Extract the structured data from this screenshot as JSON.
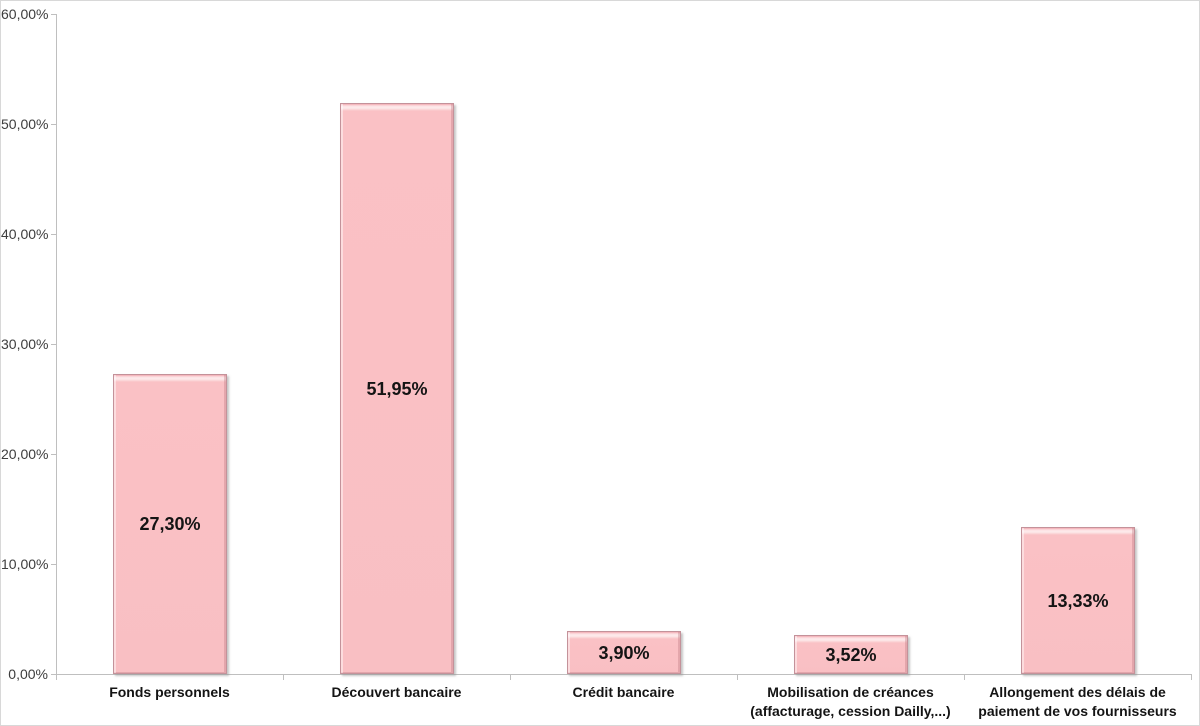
{
  "chart_data": {
    "type": "bar",
    "title": "",
    "xlabel": "",
    "ylabel": "",
    "grid": false,
    "legend": "none",
    "categories": [
      "Fonds personnels",
      "Découvert bancaire",
      "Crédit bancaire",
      "Mobilisation de créances\n(affacturage, cession Dailly,...)",
      "Allongement des délais de\npaiement de vos fournisseurs"
    ],
    "values": [
      27.3,
      51.95,
      3.9,
      3.52,
      13.33
    ],
    "data_labels": [
      "27,30%",
      "51,95%",
      "3,90%",
      "3,52%",
      "13,33%"
    ],
    "y_axis": {
      "min": 0,
      "max": 60,
      "ticks": [
        {
          "value": 0,
          "label": "0,00%"
        },
        {
          "value": 10,
          "label": "10,00%"
        },
        {
          "value": 20,
          "label": "20,00%"
        },
        {
          "value": 30,
          "label": "30,00%"
        },
        {
          "value": 40,
          "label": "40,00%"
        },
        {
          "value": 50,
          "label": "50,00%"
        },
        {
          "value": 60,
          "label": "60,00%"
        }
      ]
    },
    "colors": {
      "bar_fill": "#F9BFC3",
      "bar_border": "#C4929A",
      "axis_line": "#BFBFBF",
      "data_label_text": "#141414",
      "category_label_text": "#141414",
      "tick_label_text": "#3D3D3D",
      "frame_border": "#D8D8D8",
      "background": "#FFFFFF"
    }
  }
}
